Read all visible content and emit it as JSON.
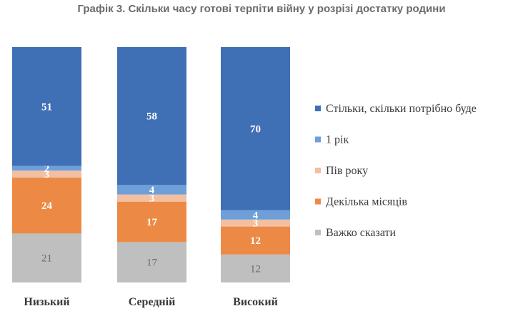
{
  "chart_data": {
    "type": "bar",
    "stacked": true,
    "orientation": "vertical",
    "title": "Графік 3. Скільки часу готові терпіти війну у розрізі достатку родини",
    "categories": [
      "Низький",
      "Середній",
      "Високий"
    ],
    "series": [
      {
        "name": "Важко сказати",
        "values": [
          21,
          17,
          12
        ],
        "color": "#bfbfbf",
        "label_color": "#6b6b6b"
      },
      {
        "name": "Декілька місяців",
        "values": [
          24,
          17,
          12
        ],
        "color": "#ec8a45",
        "label_color": "#ffffff"
      },
      {
        "name": "Пів року",
        "values": [
          3,
          3,
          3
        ],
        "color": "#f2bfa0",
        "label_color": "#ffffff"
      },
      {
        "name": "1 рік",
        "values": [
          2,
          4,
          4
        ],
        "color": "#6f9fd8",
        "label_color": "#ffffff"
      },
      {
        "name": "Стільки, скільки потрібно буде",
        "values": [
          51,
          58,
          70
        ],
        "color": "#3f6fb5",
        "label_color": "#ffffff"
      }
    ],
    "legend_order": [
      "Стільки, скільки потрібно буде",
      "1 рік",
      "Пів року",
      "Декілька місяців",
      "Важко сказати"
    ],
    "legend_position": "right",
    "grid": false,
    "axes_visible": false
  }
}
